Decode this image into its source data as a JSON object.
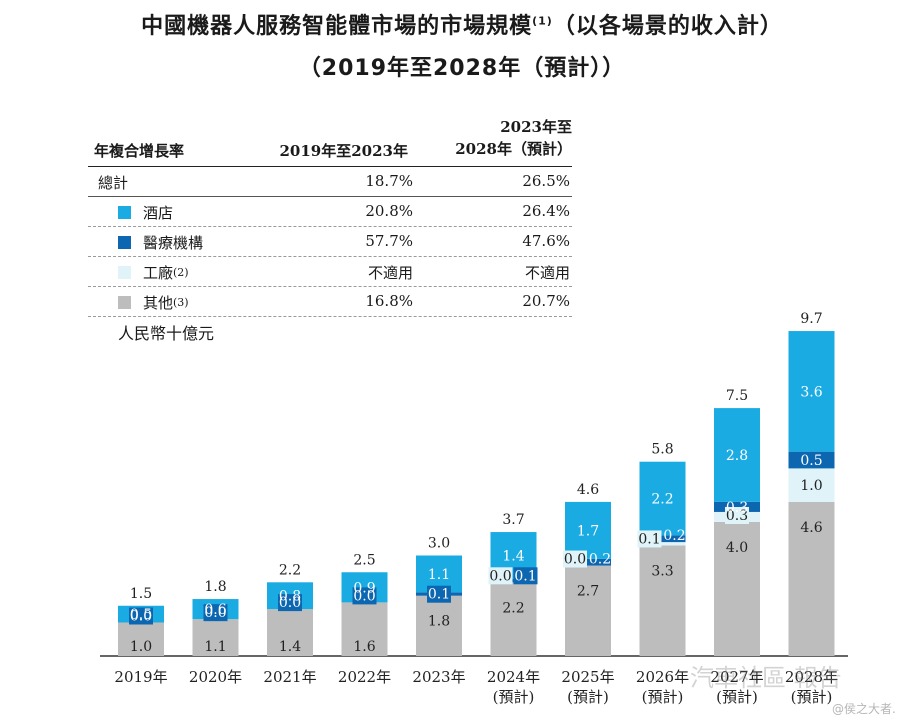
{
  "title_line1": "中國機器人服務智能體市場的市場規模",
  "title_sup": "(1)",
  "title_line1_tail": "（以各場景的收入計",
  "title_line1_end": "）",
  "title_line2": "（2019年至2028年（預計））",
  "cagr_table": {
    "header_label": "年複合增長率",
    "col1": "2019年至2023年",
    "col2_line1": "2023年至",
    "col2_line2": "2028年（預計）",
    "rows": [
      {
        "label": "總計",
        "v1": "18.7%",
        "v2": "26.5%",
        "color": ""
      },
      {
        "label": "酒店",
        "v1": "20.8%",
        "v2": "26.4%",
        "color": "#1aabe3"
      },
      {
        "label": "醫療機構",
        "v1": "57.7%",
        "v2": "47.6%",
        "color": "#0d66b0"
      },
      {
        "label": "工廠",
        "sup": "(2)",
        "v1": "不適用",
        "v2": "不適用",
        "color": "#dff3f8"
      },
      {
        "label": "其他",
        "sup": "(3)",
        "v1": "16.8%",
        "v2": "20.7%",
        "color": "#bdbdbd"
      }
    ]
  },
  "unit_label": "人民幣十億元",
  "chart_data": {
    "type": "bar",
    "stacked": true,
    "categories": [
      "2019年",
      "2020年",
      "2021年",
      "2022年",
      "2023年",
      "2024年\n(預計)",
      "2025年\n(預計)",
      "2026年\n(預計)",
      "2027年\n(預計)",
      "2028年\n(預計)"
    ],
    "series": [
      {
        "name": "其他",
        "color": "#bdbdbd",
        "values": [
          1.0,
          1.1,
          1.4,
          1.6,
          1.8,
          2.2,
          2.7,
          3.3,
          4.0,
          4.6
        ]
      },
      {
        "name": "工廠",
        "color": "#dff3f8",
        "values": [
          0.0,
          0.0,
          0.0,
          0.0,
          0.0,
          0.0,
          0.0,
          0.1,
          0.3,
          1.0
        ]
      },
      {
        "name": "醫療機構",
        "color": "#0d66b0",
        "values": [
          0.0,
          0.0,
          0.0,
          0.0,
          0.1,
          0.1,
          0.2,
          0.2,
          0.3,
          0.5
        ]
      },
      {
        "name": "酒店",
        "color": "#1aabe3",
        "values": [
          0.5,
          0.6,
          0.8,
          0.9,
          1.1,
          1.4,
          1.7,
          2.2,
          2.8,
          3.6
        ]
      }
    ],
    "totals": [
      1.5,
      1.8,
      2.2,
      2.5,
      3.0,
      3.7,
      4.6,
      5.8,
      7.5,
      9.7
    ],
    "value_labels": {
      "其他": [
        "1.0",
        "1.1",
        "1.4",
        "1.6",
        "1.8",
        "2.2",
        "2.7",
        "3.3",
        "4.0",
        "4.6"
      ],
      "工廠": [
        "",
        "",
        "",
        "",
        "",
        "0.0",
        "0.0",
        "0.1",
        "0.3",
        "1.0"
      ],
      "醫療機構": [
        "0.0",
        "0.0",
        "0.0",
        "0.0",
        "0.1",
        "0.1",
        "0.2",
        "0.2",
        "0.3",
        "0.5"
      ],
      "酒店": [
        "0.5",
        "0.6",
        "0.8",
        "0.9",
        "1.1",
        "1.4",
        "1.7",
        "2.2",
        "2.8",
        "3.6"
      ]
    },
    "grid": false
  },
  "watermark_text": "汽車社區 報告",
  "watermark_sub": "@侯之大者."
}
